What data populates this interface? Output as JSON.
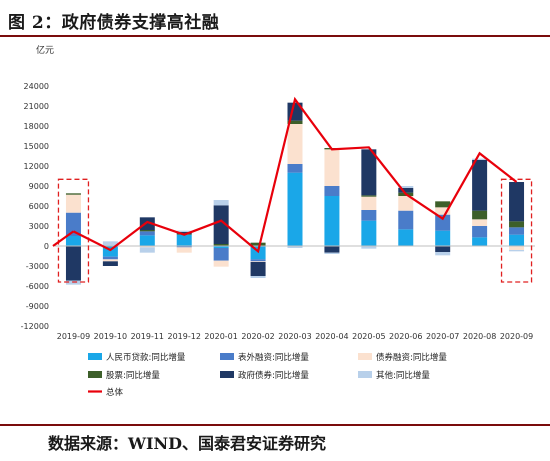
{
  "header": {
    "title": "图 2：政府债券支撑高社融"
  },
  "footer": {
    "source": "数据来源：WIND、国泰君安证券研究"
  },
  "colors": {
    "rmb_loans": "#1aa7e8",
    "off_balance": "#4a7cc9",
    "bonds": "#fbe1cf",
    "equity": "#3d5f2a",
    "gov_bonds": "#1f3864",
    "other": "#b8d0ea",
    "total": "#e8000b",
    "highlight_box": "#e02020"
  },
  "chart_data": {
    "type": "bar",
    "stacked": true,
    "unit_label": "亿元",
    "categories": [
      "2019-09",
      "2019-10",
      "2019-11",
      "2019-12",
      "2020-01",
      "2020-02",
      "2020-03",
      "2020-04",
      "2020-05",
      "2020-06",
      "2020-07",
      "2020-08",
      "2020-09"
    ],
    "ylim": [
      -12000,
      24000
    ],
    "yticks": [
      -12000,
      -9000,
      -6000,
      -3000,
      0,
      3000,
      6000,
      9000,
      12000,
      15000,
      18000,
      21000,
      24000
    ],
    "series": [
      {
        "name": "人民币贷款:同比增量",
        "color_key": "rmb_loans",
        "values": [
          1500,
          -1600,
          1600,
          1700,
          -300,
          -2000,
          11000,
          7500,
          3800,
          2500,
          2300,
          1300,
          1700
        ]
      },
      {
        "name": "表外融资:同比增量",
        "color_key": "off_balance",
        "values": [
          3500,
          -400,
          600,
          -200,
          -1900,
          -300,
          1300,
          1500,
          1600,
          2800,
          2400,
          1700,
          1100
        ]
      },
      {
        "name": "债券融资:同比增量",
        "color_key": "bonds",
        "values": [
          2700,
          -300,
          -200,
          -800,
          -900,
          -100,
          6000,
          5500,
          2000,
          2200,
          1100,
          1000,
          -600
        ]
      },
      {
        "name": "股票:同比增量",
        "color_key": "equity",
        "values": [
          200,
          100,
          200,
          100,
          300,
          500,
          500,
          200,
          200,
          500,
          900,
          1300,
          900
        ]
      },
      {
        "name": "政府债券:同比增量",
        "color_key": "gov_bonds",
        "values": [
          -5200,
          -700,
          1900,
          300,
          5800,
          -2100,
          2700,
          -1000,
          6900,
          700,
          -900,
          7600,
          5900
        ]
      },
      {
        "name": "其他:同比增量",
        "color_key": "other",
        "values": [
          -600,
          600,
          -800,
          200,
          800,
          -300,
          -300,
          -200,
          -400,
          300,
          -500,
          200,
          -200
        ]
      }
    ],
    "line": {
      "name": "总体",
      "color_key": "total",
      "values": [
        2200,
        -600,
        3600,
        1700,
        3800,
        -800,
        22000,
        14500,
        14800,
        7800,
        4100,
        13900,
        9600
      ]
    },
    "highlight_categories": [
      "2019-09",
      "2020-09"
    ],
    "legend_position": "bottom"
  }
}
